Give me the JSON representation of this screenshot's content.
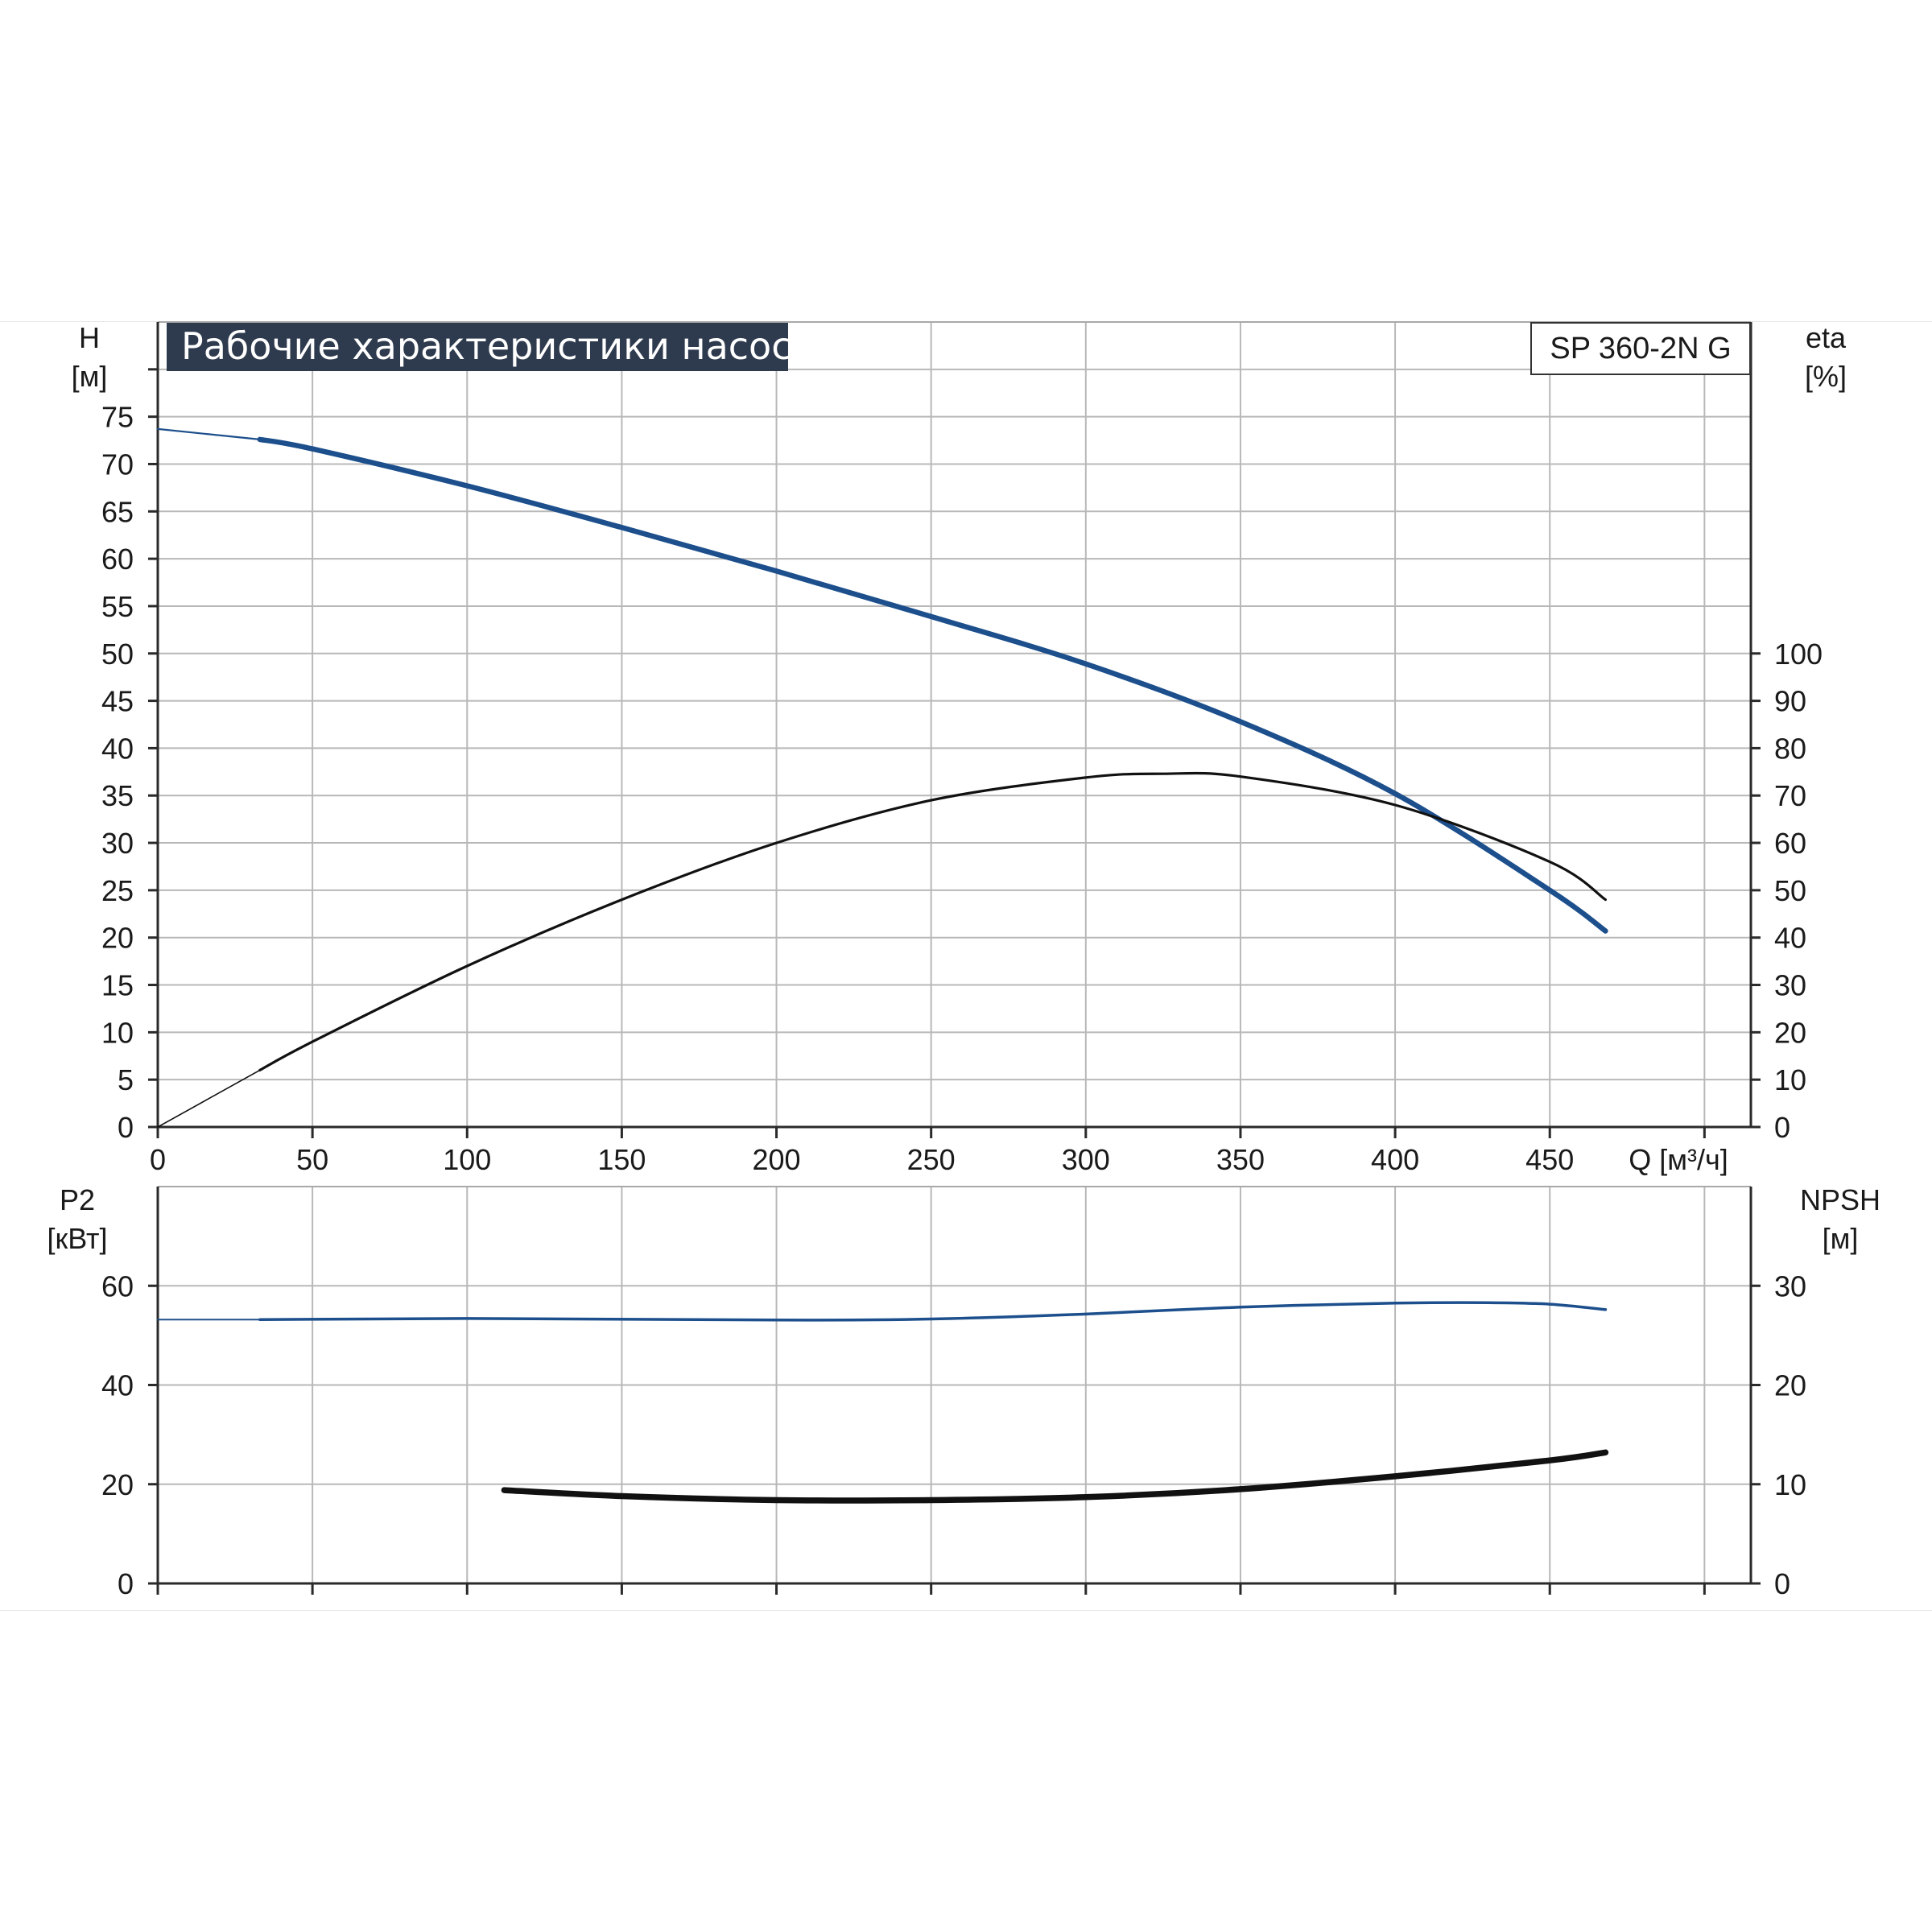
{
  "chart_data": [
    {
      "type": "line",
      "title": "Рабочие характеристики насоса",
      "model_label": "SP 360-2N G",
      "xlabel": "Q [м³/ч]",
      "xlim": [
        0,
        515
      ],
      "xticks": [
        0,
        50,
        100,
        150,
        200,
        250,
        300,
        350,
        400,
        450
      ],
      "grid": true,
      "y_left": {
        "label_line1": "H",
        "label_line2": "[м]",
        "ylim": [
          0,
          85
        ],
        "ticks": [
          0,
          5,
          10,
          15,
          20,
          25,
          30,
          35,
          40,
          45,
          50,
          55,
          60,
          65,
          70,
          75
        ]
      },
      "y_right": {
        "label_line1": "eta",
        "label_line2": "[%]",
        "ylim": [
          0,
          170
        ],
        "ticks": [
          0,
          10,
          20,
          30,
          40,
          50,
          60,
          70,
          80,
          90,
          100
        ]
      },
      "series": [
        {
          "axis": "left",
          "color": "#1c4f8c",
          "x": [
            0,
            33,
            50,
            100,
            150,
            200,
            250,
            300,
            350,
            400,
            450,
            468
          ],
          "y": [
            73.7,
            72.6,
            71.6,
            67.7,
            63.3,
            58.7,
            53.9,
            48.9,
            42.8,
            35.2,
            25.0,
            20.7
          ]
        },
        {
          "axis": "right",
          "color": "#111111",
          "x": [
            0,
            33,
            50,
            100,
            150,
            200,
            250,
            300,
            325,
            350,
            400,
            450,
            468
          ],
          "y": [
            0,
            12,
            18,
            34,
            48,
            60,
            69,
            73.8,
            74.6,
            74,
            68,
            56,
            48
          ]
        }
      ]
    },
    {
      "type": "line",
      "xlim": [
        0,
        515
      ],
      "grid": true,
      "y_left": {
        "label_line1": "P2",
        "label_line2": "[кВт]",
        "ylim": [
          0,
          80
        ],
        "ticks": [
          0,
          20,
          40,
          60
        ]
      },
      "y_right": {
        "label_line1": "NPSH",
        "label_line2": "[м]",
        "ylim": [
          0,
          40
        ],
        "ticks": [
          0,
          10,
          20,
          30
        ]
      },
      "series": [
        {
          "axis": "left",
          "color": "#1c4f8c",
          "x": [
            0,
            33,
            100,
            200,
            250,
            300,
            350,
            400,
            430,
            450,
            468
          ],
          "y": [
            53.2,
            53.2,
            53.4,
            53.1,
            53.3,
            54.3,
            55.7,
            56.5,
            56.6,
            56.3,
            55.2
          ]
        },
        {
          "axis": "right",
          "color": "#111111",
          "x": [
            112,
            150,
            200,
            250,
            300,
            350,
            400,
            450,
            468
          ],
          "y": [
            9.4,
            8.8,
            8.4,
            8.4,
            8.7,
            9.5,
            10.8,
            12.4,
            13.2
          ]
        }
      ]
    }
  ]
}
